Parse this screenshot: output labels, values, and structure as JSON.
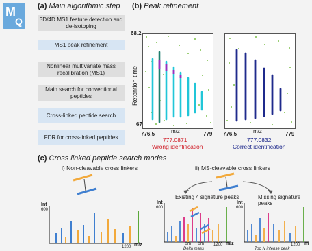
{
  "logo": {
    "text_m": "M",
    "text_q": "Q"
  },
  "panel_a": {
    "label": "(a)",
    "title": "Main algorithmic step",
    "steps": [
      "3D/4D MS1 feature detection and de-isotoping",
      "MS1 peak refinement",
      "Nonlinear multivariate mass recalibration (MS1)",
      "Main search for conventional peptides",
      "Cross-linked peptide search",
      "FDR for cross-linked peptides"
    ]
  },
  "panel_b": {
    "label": "(b)",
    "title": "Peak refinement",
    "y_axis_label": "Retention time",
    "y_top_tick": "68.2",
    "y_bottom_tick": "67",
    "left_plot": {
      "x_ticks": [
        "776.5",
        "m/z",
        "779"
      ],
      "mass": "777.0871",
      "verdict": "Wrong identification"
    },
    "right_plot": {
      "x_ticks": [
        "776.5",
        "m/z",
        "779"
      ],
      "mass": "777.0832",
      "verdict": "Correct identification"
    }
  },
  "panel_c": {
    "label": "(c)",
    "title": "Cross linked peptide search modes",
    "mode_i": "i) Non-cleavable cross linkers",
    "mode_ii": "ii) MS-cleavable cross linkers",
    "left_spec": {
      "y_label": "Int",
      "y_max": "600",
      "x_max": "1200",
      "x_unit": "m/z"
    },
    "mid_spec": {
      "header": "Existing 4 signature peaks",
      "y_label": "Int",
      "y_max": "600",
      "x_max": "1200",
      "x_unit": "m/z",
      "delta_1": "Δm",
      "delta_2": "Δm",
      "caption": "Delta mass"
    },
    "right_spec": {
      "header": "Missing signature peaks",
      "y_label": "Int",
      "y_max": "600",
      "x_max": "1200",
      "x_unit": "m",
      "caption": "Top N intense peak"
    }
  },
  "colors": {
    "background": "#f3f3f3",
    "logo": "#6aa9dd",
    "step_gray": "#dedede",
    "step_blue": "#d7e5f3",
    "cyan": "#21c6d8",
    "magenta": "#9b2fc0",
    "navy": "#1f2a8c",
    "green": "#5aa83a",
    "orange": "#f2a93b",
    "blue": "#3f7fd0",
    "pink": "#d9287e",
    "red": "#d0202a"
  }
}
